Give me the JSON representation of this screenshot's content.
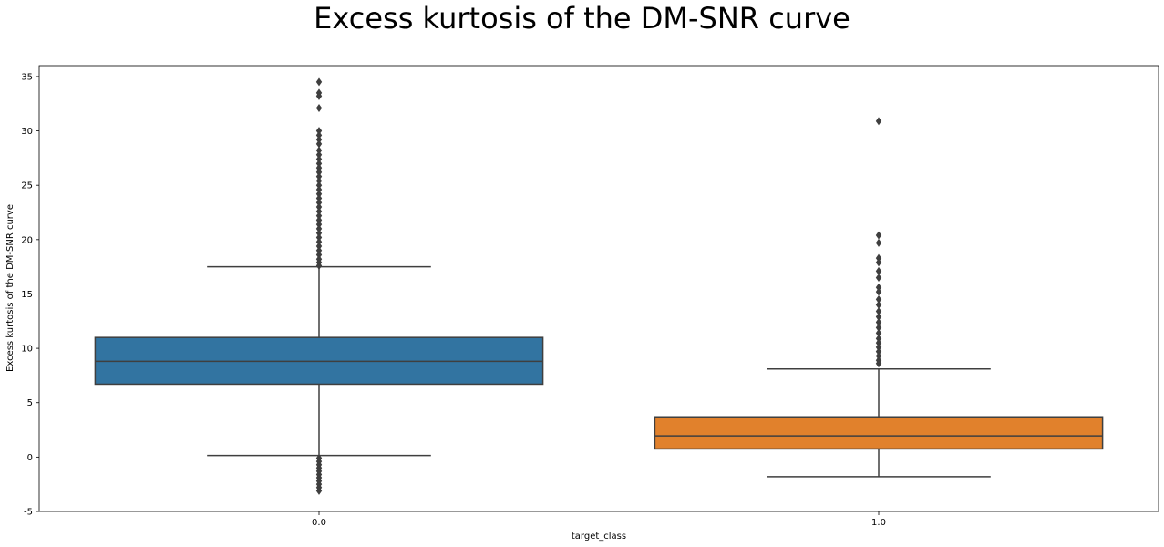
{
  "chart_data": {
    "type": "box",
    "title": "Excess kurtosis of the DM-SNR curve",
    "xlabel": "target_class",
    "ylabel": "Excess kurtosis of the DM-SNR curve",
    "ylim": [
      -5,
      36
    ],
    "yticks": [
      -5,
      0,
      5,
      10,
      15,
      20,
      25,
      30,
      35
    ],
    "grid": false,
    "categories": [
      "0.0",
      "1.0"
    ],
    "boxes": [
      {
        "category": "0.0",
        "color": "#3274a1",
        "whisker_low": 0.15,
        "q1": 6.7,
        "median": 8.8,
        "q3": 11.0,
        "whisker_high": 17.5,
        "outliers": [
          34.5,
          33.5,
          33.2,
          32.1,
          30.0,
          29.6,
          29.2,
          28.8,
          28.2,
          27.8,
          27.4,
          27.0,
          26.6,
          26.2,
          25.8,
          25.4,
          25.0,
          24.6,
          24.2,
          23.8,
          23.4,
          23.0,
          22.6,
          22.2,
          21.8,
          21.4,
          21.0,
          20.6,
          20.2,
          19.8,
          19.4,
          19.0,
          18.6,
          18.2,
          17.9,
          17.6,
          -0.1,
          -0.4,
          -0.7,
          -1.0,
          -1.3,
          -1.6,
          -1.9,
          -2.2,
          -2.5,
          -2.8,
          -3.1
        ]
      },
      {
        "category": "1.0",
        "color": "#e1812c",
        "whisker_low": -1.8,
        "q1": 0.75,
        "median": 1.95,
        "q3": 3.7,
        "whisker_high": 8.1,
        "outliers": [
          30.9,
          20.4,
          19.7,
          18.3,
          17.9,
          17.1,
          16.5,
          15.6,
          15.2,
          14.5,
          14.0,
          13.4,
          12.9,
          12.4,
          11.9,
          11.4,
          10.9,
          10.5,
          10.1,
          9.7,
          9.3,
          8.9,
          8.6
        ]
      }
    ]
  }
}
